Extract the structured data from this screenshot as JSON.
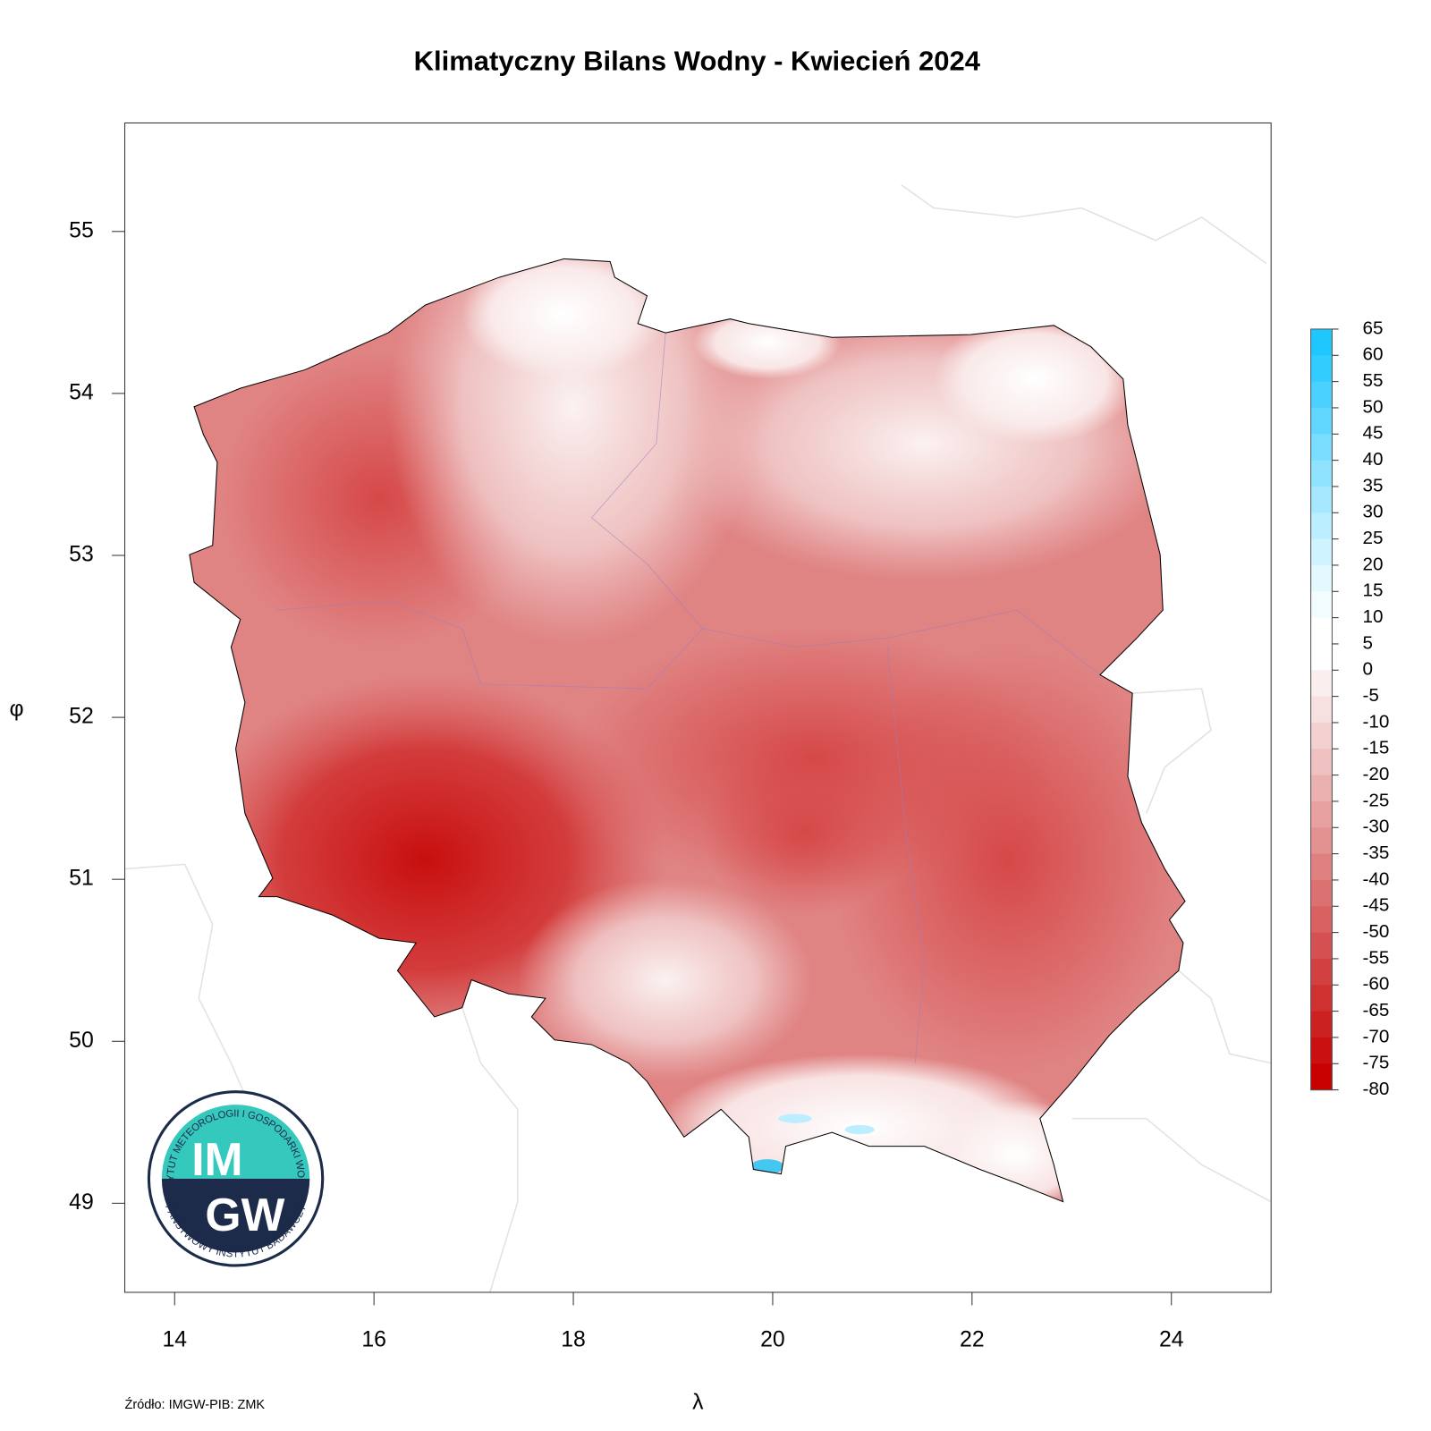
{
  "title": "Klimatyczny Bilans Wodny - Kwiecień 2024",
  "map": {
    "type": "raster",
    "xlabel": "λ",
    "ylabel": "φ",
    "xlim": [
      13.5,
      25.0
    ],
    "ylim": [
      48.45,
      55.67
    ],
    "xticks": [
      14,
      16,
      18,
      20,
      22,
      24
    ],
    "yticks": [
      49,
      50,
      51,
      52,
      53,
      54,
      55
    ]
  },
  "legend": {
    "ticks": [
      65,
      60,
      55,
      50,
      45,
      40,
      35,
      30,
      25,
      20,
      15,
      10,
      5,
      0,
      -5,
      -10,
      -15,
      -20,
      -25,
      -30,
      -35,
      -40,
      -45,
      -50,
      -55,
      -60,
      -65,
      -70,
      -75,
      -80
    ],
    "colors": [
      "#1ec8ff",
      "#33ccff",
      "#4ad1ff",
      "#61d7ff",
      "#78ddff",
      "#8fe3ff",
      "#a5e8ff",
      "#bbeeff",
      "#cff4ff",
      "#e3f9ff",
      "#f2fcff",
      "#ffffff",
      "#ffffff",
      "#fbeeee",
      "#f7e0e0",
      "#f3d1d1",
      "#efc1c1",
      "#ebb1b1",
      "#e8a1a1",
      "#e49191",
      "#e08181",
      "#dc7171",
      "#d96161",
      "#d55151",
      "#d24141",
      "#cf3131",
      "#cc2121",
      "#ca1111",
      "#c80000"
    ]
  },
  "source": "Źródło: IMGW-PIB: ZMK",
  "logo": {
    "line1": "IM",
    "line2": "GW",
    "top_text": "INSTYTUT METEOROLOGII I GOSPODARKI WODNEJ",
    "bottom_text": "PAŃSTWOWY INSTYTUT BADAWCZY"
  }
}
